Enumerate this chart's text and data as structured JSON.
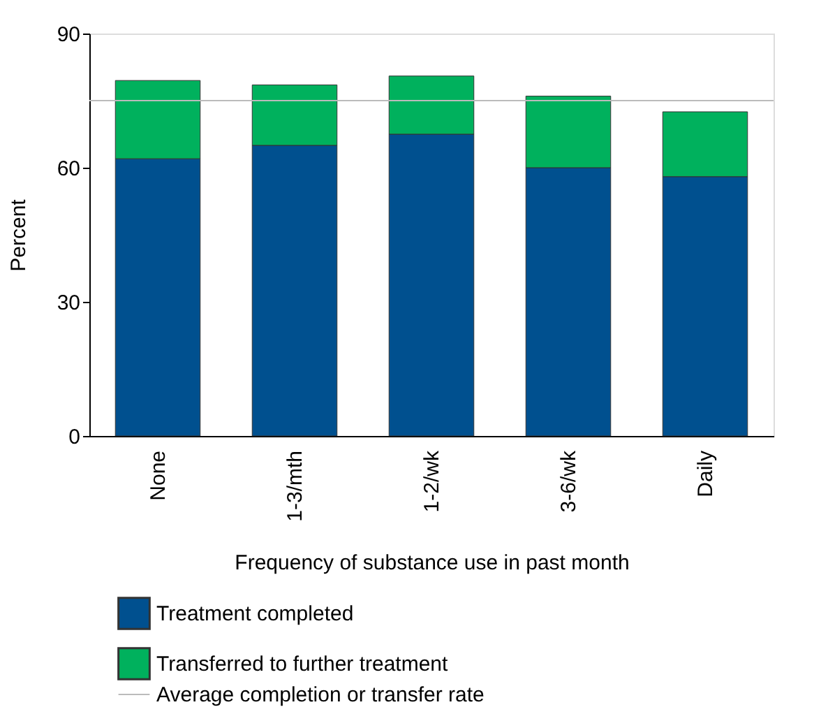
{
  "chart_data": {
    "type": "bar",
    "stacked": true,
    "categories": [
      "None",
      "1-3/mth",
      "1-2/wk",
      "3-6/wk",
      "Daily"
    ],
    "series": [
      {
        "name": "Treatment completed",
        "color": "#00508f",
        "values": [
          62,
          65,
          67.5,
          60,
          58
        ]
      },
      {
        "name": "Transferred to further treatment",
        "color": "#00b15d",
        "values": [
          17.5,
          13.5,
          13,
          16,
          14.5
        ]
      }
    ],
    "xlabel": "Frequency of substance use in past month",
    "ylabel": "Percent",
    "ylim": [
      0,
      90
    ],
    "yticks": [
      0,
      30,
      60,
      90
    ],
    "grid": false,
    "legend": "bottom",
    "ref_lines": [
      {
        "axis": "y",
        "value": 75,
        "label": "Average completion or transfer rate",
        "color": "#bbbbbb",
        "line_style": "solid"
      }
    ]
  }
}
